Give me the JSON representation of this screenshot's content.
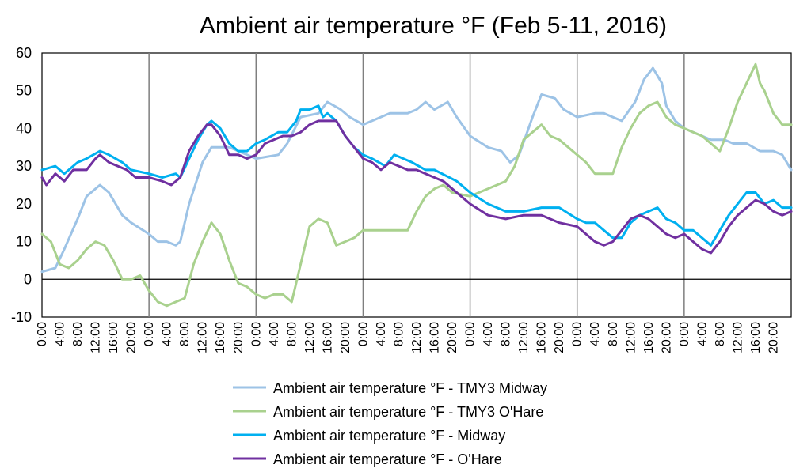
{
  "chart_data": {
    "type": "line",
    "title": "Ambient air temperature °F (Feb 5-11, 2016)",
    "xlabel": "",
    "ylabel": "",
    "ylim": [
      -10,
      60
    ],
    "yticks": [
      "-10",
      "0",
      "10",
      "20",
      "30",
      "40",
      "50",
      "60"
    ],
    "x_tick_labels": [
      "0:00",
      "4:00",
      "8:00",
      "12:00",
      "16:00",
      "20:00",
      "0:00",
      "4:00",
      "8:00",
      "12:00",
      "16:00",
      "20:00",
      "0:00",
      "4:00",
      "8:00",
      "12:00",
      "16:00",
      "20:00",
      "0:00",
      "4:00",
      "8:00",
      "12:00",
      "16:00",
      "20:00",
      "0:00",
      "4:00",
      "8:00",
      "12:00",
      "16:00",
      "20:00",
      "0:00",
      "4:00",
      "8:00",
      "12:00",
      "16:00",
      "20:00",
      "0:00",
      "4:00",
      "8:00",
      "12:00",
      "16:00",
      "20:00"
    ],
    "hours_per_tick": 4,
    "total_hours": 168,
    "day_boundaries_hours": [
      24,
      48,
      72,
      96,
      120,
      144
    ],
    "grid": false,
    "legend_position": "bottom",
    "series": [
      {
        "name": "Ambient air temperature °F - TMY3 Midway",
        "color": "#9DC3E6",
        "x": [
          0,
          3,
          5,
          8,
          10,
          13,
          15,
          18,
          20,
          24,
          26,
          28,
          30,
          31,
          33,
          36,
          38,
          42,
          48,
          53,
          55,
          58,
          62,
          64,
          67,
          69,
          72,
          74,
          78,
          80,
          82,
          84,
          86,
          88,
          91,
          93,
          96,
          100,
          103,
          105,
          107,
          110,
          112,
          115,
          117,
          120,
          124,
          126,
          128,
          130,
          133,
          135,
          137,
          139,
          140,
          142,
          144,
          148,
          150,
          153,
          155,
          158,
          161,
          164,
          166,
          168
        ],
        "y": [
          2,
          3,
          8,
          16,
          22,
          25,
          23,
          17,
          15,
          12,
          10,
          10,
          9,
          10,
          20,
          31,
          35,
          35,
          32,
          33,
          36,
          43,
          44,
          47,
          45,
          43,
          41,
          42,
          44,
          44,
          44,
          45,
          47,
          45,
          47,
          43,
          38,
          35,
          34,
          31,
          33,
          43,
          49,
          48,
          45,
          43,
          44,
          44,
          43,
          42,
          47,
          53,
          56,
          52,
          46,
          42,
          40,
          38,
          37,
          37,
          36,
          36,
          34,
          34,
          33,
          29
        ]
      },
      {
        "name": "Ambient air temperature °F - TMY3 O'Hare",
        "color": "#A9D18E",
        "x": [
          0,
          2,
          4,
          6,
          8,
          10,
          12,
          14,
          16,
          18,
          20,
          22,
          24,
          26,
          28,
          30,
          32,
          34,
          36,
          38,
          40,
          42,
          44,
          46,
          48,
          50,
          52,
          54,
          56,
          58,
          60,
          62,
          64,
          66,
          68,
          70,
          72,
          76,
          80,
          82,
          84,
          86,
          88,
          90,
          92,
          96,
          98,
          100,
          102,
          104,
          106,
          108,
          110,
          112,
          114,
          116,
          118,
          120,
          122,
          124,
          126,
          128,
          130,
          132,
          134,
          136,
          138,
          140,
          142,
          144,
          146,
          148,
          150,
          152,
          154,
          156,
          158,
          160,
          161,
          162,
          164,
          166,
          168
        ],
        "y": [
          12,
          10,
          4,
          3,
          5,
          8,
          10,
          9,
          5,
          0,
          0,
          1,
          -3,
          -6,
          -7,
          -6,
          -5,
          4,
          10,
          15,
          12,
          5,
          -1,
          -2,
          -4,
          -5,
          -4,
          -4,
          -6,
          4,
          14,
          16,
          15,
          9,
          10,
          11,
          13,
          13,
          13,
          13,
          18,
          22,
          24,
          25,
          23,
          22,
          23,
          24,
          25,
          26,
          30,
          37,
          39,
          41,
          38,
          37,
          35,
          33,
          31,
          28,
          28,
          28,
          35,
          40,
          44,
          46,
          47,
          43,
          41,
          40,
          39,
          38,
          36,
          34,
          40,
          47,
          52,
          57,
          52,
          50,
          44,
          41,
          41
        ]
      },
      {
        "name": "Ambient air temperature °F - Midway",
        "color": "#00B0F0",
        "x": [
          0,
          3,
          5,
          8,
          10,
          13,
          15,
          18,
          20,
          24,
          27,
          30,
          31,
          33,
          35,
          37,
          38,
          40,
          42,
          44,
          46,
          48,
          50,
          53,
          55,
          57,
          58,
          60,
          62,
          63,
          64,
          66,
          68,
          70,
          72,
          74,
          77,
          79,
          83,
          86,
          88,
          93,
          96,
          100,
          104,
          108,
          112,
          116,
          120,
          122,
          124,
          126,
          128,
          130,
          132,
          134,
          136,
          138,
          140,
          142,
          144,
          146,
          148,
          150,
          152,
          154,
          156,
          158,
          160,
          162,
          164,
          166,
          168
        ],
        "y": [
          29,
          30,
          28,
          31,
          32,
          34,
          33,
          31,
          29,
          28,
          27,
          28,
          27,
          32,
          37,
          41,
          42,
          40,
          36,
          34,
          34,
          36,
          37,
          39,
          39,
          42,
          45,
          45,
          46,
          43,
          44,
          42,
          38,
          35,
          33,
          32,
          30,
          33,
          31,
          29,
          29,
          26,
          23,
          20,
          18,
          18,
          19,
          19,
          16,
          15,
          15,
          13,
          11,
          11,
          15,
          17,
          18,
          19,
          16,
          15,
          13,
          13,
          11,
          9,
          13,
          17,
          20,
          23,
          23,
          20,
          21,
          19,
          19
        ]
      },
      {
        "name": "Ambient air temperature °F - O'Hare",
        "color": "#7030A0",
        "x": [
          0,
          1,
          3,
          5,
          7,
          10,
          12,
          13,
          15,
          17,
          19,
          21,
          24,
          27,
          29,
          31,
          33,
          35,
          37,
          38,
          40,
          42,
          44,
          46,
          48,
          50,
          52,
          54,
          56,
          58,
          60,
          62,
          64,
          66,
          68,
          70,
          72,
          74,
          76,
          78,
          80,
          82,
          84,
          86,
          88,
          90,
          92,
          94,
          96,
          100,
          104,
          108,
          112,
          116,
          120,
          124,
          126,
          128,
          130,
          132,
          134,
          136,
          138,
          140,
          142,
          144,
          146,
          148,
          150,
          152,
          154,
          156,
          158,
          160,
          162,
          164,
          166,
          168
        ],
        "y": [
          27,
          25,
          28,
          26,
          29,
          29,
          32,
          33,
          31,
          30,
          29,
          27,
          27,
          26,
          25,
          27,
          34,
          38,
          41,
          41,
          38,
          33,
          33,
          32,
          33,
          36,
          37,
          38,
          38,
          39,
          41,
          42,
          42,
          42,
          38,
          35,
          32,
          31,
          29,
          31,
          30,
          29,
          29,
          28,
          27,
          26,
          24,
          22,
          20,
          17,
          16,
          17,
          17,
          15,
          14,
          10,
          9,
          10,
          13,
          16,
          17,
          16,
          14,
          12,
          11,
          12,
          10,
          8,
          7,
          10,
          14,
          17,
          19,
          21,
          20,
          18,
          17,
          18
        ]
      }
    ]
  }
}
